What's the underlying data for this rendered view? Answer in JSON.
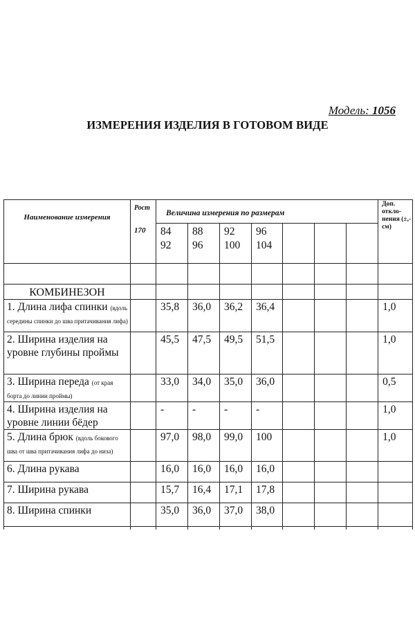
{
  "model_label": "Модель:",
  "model_number": "1056",
  "heading": "ИЗМЕРЕНИЯ ИЗДЕЛИЯ В ГОТОВОМ ВИДЕ",
  "table": {
    "header": {
      "name": "Наименование измерения",
      "height_label": "Рост",
      "height_value": "170",
      "sizes_title": "Величина измерения по размерам",
      "sizes": [
        {
          "top": "84",
          "bottom": "92"
        },
        {
          "top": "88",
          "bottom": "96"
        },
        {
          "top": "92",
          "bottom": "100"
        },
        {
          "top": "96",
          "bottom": "104"
        }
      ],
      "tolerance": "Доп. откло-нения (±,-см)"
    },
    "section": "КОМБИНЕЗОН",
    "rows": [
      {
        "name": "1. Длина лифа спинки",
        "note": "(вдоль середины спинки до шва притачивания лифа)",
        "values": [
          "35,8",
          "36,0",
          "36,2",
          "36,4"
        ],
        "tol": "1,0"
      },
      {
        "name": "2. Ширина изделия на уровне глубины проймы",
        "note": "",
        "values": [
          "45,5",
          "47,5",
          "49,5",
          "51,5"
        ],
        "tol": "1,0"
      },
      {
        "name": "3. Ширина переда",
        "note": "(от края борта до линии проймы)",
        "values": [
          "33,0",
          "34,0",
          "35,0",
          "36,0"
        ],
        "tol": "0,5"
      },
      {
        "name": "4. Ширина изделия на уровне линии бёдер",
        "note": "",
        "values": [
          "-",
          "-",
          "-",
          "-"
        ],
        "tol": "1,0"
      },
      {
        "name": "5. Длина брюк",
        "note": "(вдоль бокового шва от шва притачивания лифа до низа)",
        "values": [
          "97,0",
          "98,0",
          "99,0",
          "100"
        ],
        "tol": "1,0"
      },
      {
        "name": "6. Длина рукава",
        "note": "",
        "values": [
          "16,0",
          "16,0",
          "16,0",
          "16,0"
        ],
        "tol": ""
      },
      {
        "name": "7. Ширина рукава",
        "note": "",
        "values": [
          "15,7",
          "16,4",
          "17,1",
          "17,8"
        ],
        "tol": ""
      },
      {
        "name": "8. Ширина спинки",
        "note": "",
        "values": [
          "35,0",
          "36,0",
          "37,0",
          "38,0"
        ],
        "tol": ""
      }
    ]
  }
}
